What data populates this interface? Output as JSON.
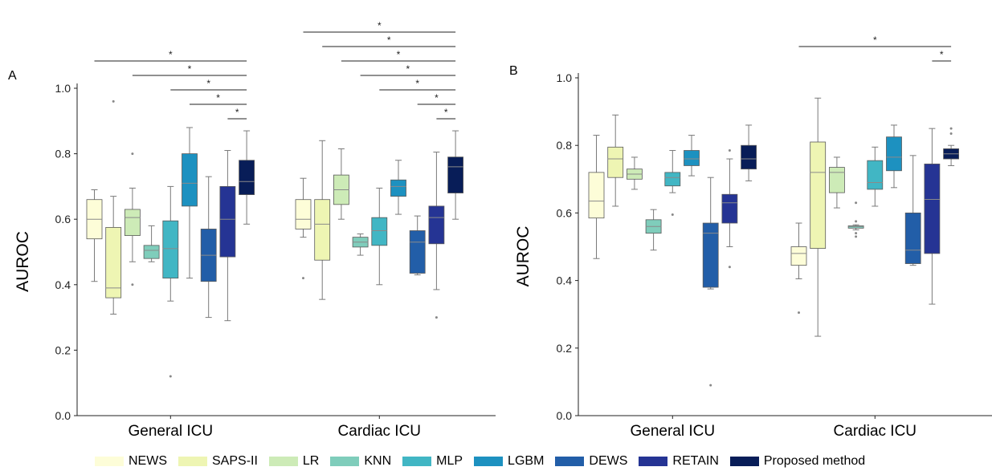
{
  "legend_title": "",
  "chart_data": [
    {
      "type": "box",
      "panel_label": "A",
      "ylabel": "AUROC",
      "ylim": [
        0.0,
        1.0
      ],
      "yticks": [
        "0.0",
        "0.2",
        "0.4",
        "0.6",
        "0.8",
        "1.0"
      ],
      "categories": [
        "General ICU",
        "Cardiac ICU"
      ],
      "series_names": [
        "NEWS",
        "SAPS-II",
        "LR",
        "KNN",
        "MLP",
        "LGBM",
        "DEWS",
        "RETAIN",
        "Proposed method"
      ],
      "groups": [
        {
          "category": "General ICU",
          "boxes": [
            {
              "series": "NEWS",
              "whisker_low": 0.41,
              "q1": 0.54,
              "median": 0.6,
              "q3": 0.66,
              "whisker_high": 0.69,
              "outliers": []
            },
            {
              "series": "SAPS-II",
              "whisker_low": 0.31,
              "q1": 0.36,
              "median": 0.39,
              "q3": 0.575,
              "whisker_high": 0.67,
              "outliers": [
                0.96
              ]
            },
            {
              "series": "LR",
              "whisker_low": 0.47,
              "q1": 0.55,
              "median": 0.605,
              "q3": 0.63,
              "whisker_high": 0.695,
              "outliers": [
                0.8,
                0.4
              ]
            },
            {
              "series": "KNN",
              "whisker_low": 0.47,
              "q1": 0.48,
              "median": 0.505,
              "q3": 0.52,
              "whisker_high": 0.58,
              "outliers": []
            },
            {
              "series": "MLP",
              "whisker_low": 0.35,
              "q1": 0.42,
              "median": 0.51,
              "q3": 0.595,
              "whisker_high": 0.7,
              "outliers": [
                0.12
              ]
            },
            {
              "series": "LGBM",
              "whisker_low": 0.42,
              "q1": 0.64,
              "median": 0.71,
              "q3": 0.8,
              "whisker_high": 0.88,
              "outliers": []
            },
            {
              "series": "DEWS",
              "whisker_low": 0.3,
              "q1": 0.41,
              "median": 0.49,
              "q3": 0.57,
              "whisker_high": 0.73,
              "outliers": []
            },
            {
              "series": "RETAIN",
              "whisker_low": 0.29,
              "q1": 0.485,
              "median": 0.6,
              "q3": 0.7,
              "whisker_high": 0.81,
              "outliers": []
            },
            {
              "series": "Proposed method",
              "whisker_low": 0.585,
              "q1": 0.675,
              "median": 0.715,
              "q3": 0.78,
              "whisker_high": 0.87,
              "outliers": []
            }
          ]
        },
        {
          "category": "Cardiac ICU",
          "boxes": [
            {
              "series": "NEWS",
              "whisker_low": 0.545,
              "q1": 0.57,
              "median": 0.6,
              "q3": 0.66,
              "whisker_high": 0.725,
              "outliers": [
                0.42
              ]
            },
            {
              "series": "SAPS-II",
              "whisker_low": 0.355,
              "q1": 0.475,
              "median": 0.585,
              "q3": 0.66,
              "whisker_high": 0.84,
              "outliers": []
            },
            {
              "series": "LR",
              "whisker_low": 0.6,
              "q1": 0.645,
              "median": 0.69,
              "q3": 0.735,
              "whisker_high": 0.815,
              "outliers": []
            },
            {
              "series": "KNN",
              "whisker_low": 0.49,
              "q1": 0.515,
              "median": 0.53,
              "q3": 0.545,
              "whisker_high": 0.555,
              "outliers": []
            },
            {
              "series": "MLP",
              "whisker_low": 0.4,
              "q1": 0.52,
              "median": 0.565,
              "q3": 0.605,
              "whisker_high": 0.695,
              "outliers": []
            },
            {
              "series": "LGBM",
              "whisker_low": 0.615,
              "q1": 0.67,
              "median": 0.7,
              "q3": 0.72,
              "whisker_high": 0.78,
              "outliers": []
            },
            {
              "series": "DEWS",
              "whisker_low": 0.43,
              "q1": 0.435,
              "median": 0.53,
              "q3": 0.565,
              "whisker_high": 0.61,
              "outliers": []
            },
            {
              "series": "RETAIN",
              "whisker_low": 0.385,
              "q1": 0.525,
              "median": 0.605,
              "q3": 0.64,
              "whisker_high": 0.805,
              "outliers": [
                0.3
              ]
            },
            {
              "series": "Proposed method",
              "whisker_low": 0.6,
              "q1": 0.68,
              "median": 0.76,
              "q3": 0.79,
              "whisker_high": 0.87,
              "outliers": []
            }
          ]
        }
      ],
      "significance_bars": [
        {
          "category": "General ICU",
          "from": "NEWS",
          "to": "Proposed method",
          "label": "*"
        },
        {
          "category": "General ICU",
          "from": "LR",
          "to": "Proposed method",
          "label": "*"
        },
        {
          "category": "General ICU",
          "from": "MLP",
          "to": "Proposed method",
          "label": "*"
        },
        {
          "category": "General ICU",
          "from": "LGBM",
          "to": "Proposed method",
          "label": "*"
        },
        {
          "category": "General ICU",
          "from": "RETAIN",
          "to": "Proposed method",
          "label": "*"
        },
        {
          "category": "Cardiac ICU",
          "from": "NEWS",
          "to": "Proposed method",
          "label": "*"
        },
        {
          "category": "Cardiac ICU",
          "from": "SAPS-II",
          "to": "Proposed method",
          "label": "*"
        },
        {
          "category": "Cardiac ICU",
          "from": "LR",
          "to": "Proposed method",
          "label": "*"
        },
        {
          "category": "Cardiac ICU",
          "from": "KNN",
          "to": "Proposed method",
          "label": "*"
        },
        {
          "category": "Cardiac ICU",
          "from": "MLP",
          "to": "Proposed method",
          "label": "*"
        },
        {
          "category": "Cardiac ICU",
          "from": "DEWS",
          "to": "Proposed method",
          "label": "*"
        },
        {
          "category": "Cardiac ICU",
          "from": "RETAIN",
          "to": "Proposed method",
          "label": "*"
        }
      ]
    },
    {
      "type": "box",
      "panel_label": "B",
      "ylabel": "AUROC",
      "ylim": [
        0.0,
        1.0
      ],
      "yticks": [
        "0.0",
        "0.2",
        "0.4",
        "0.6",
        "0.8",
        "1.0"
      ],
      "categories": [
        "General ICU",
        "Cardiac ICU"
      ],
      "series_names": [
        "NEWS",
        "SAPS-II",
        "LR",
        "KNN",
        "MLP",
        "LGBM",
        "DEWS",
        "RETAIN",
        "Proposed method"
      ],
      "groups": [
        {
          "category": "General ICU",
          "boxes": [
            {
              "series": "NEWS",
              "whisker_low": 0.465,
              "q1": 0.585,
              "median": 0.635,
              "q3": 0.72,
              "whisker_high": 0.83,
              "outliers": []
            },
            {
              "series": "SAPS-II",
              "whisker_low": 0.62,
              "q1": 0.705,
              "median": 0.76,
              "q3": 0.795,
              "whisker_high": 0.89,
              "outliers": []
            },
            {
              "series": "LR",
              "whisker_low": 0.67,
              "q1": 0.7,
              "median": 0.715,
              "q3": 0.73,
              "whisker_high": 0.765,
              "outliers": []
            },
            {
              "series": "KNN",
              "whisker_low": 0.49,
              "q1": 0.54,
              "median": 0.56,
              "q3": 0.58,
              "whisker_high": 0.61,
              "outliers": []
            },
            {
              "series": "MLP",
              "whisker_low": 0.66,
              "q1": 0.68,
              "median": 0.705,
              "q3": 0.72,
              "whisker_high": 0.785,
              "outliers": [
                0.595
              ]
            },
            {
              "series": "LGBM",
              "whisker_low": 0.71,
              "q1": 0.74,
              "median": 0.76,
              "q3": 0.785,
              "whisker_high": 0.83,
              "outliers": []
            },
            {
              "series": "DEWS",
              "whisker_low": 0.375,
              "q1": 0.38,
              "median": 0.54,
              "q3": 0.57,
              "whisker_high": 0.705,
              "outliers": [
                0.09
              ]
            },
            {
              "series": "RETAIN",
              "whisker_low": 0.5,
              "q1": 0.57,
              "median": 0.63,
              "q3": 0.655,
              "whisker_high": 0.76,
              "outliers": [
                0.785,
                0.44
              ]
            },
            {
              "series": "Proposed method",
              "whisker_low": 0.695,
              "q1": 0.73,
              "median": 0.76,
              "q3": 0.8,
              "whisker_high": 0.86,
              "outliers": []
            }
          ]
        },
        {
          "category": "Cardiac ICU",
          "boxes": [
            {
              "series": "NEWS",
              "whisker_low": 0.405,
              "q1": 0.445,
              "median": 0.48,
              "q3": 0.5,
              "whisker_high": 0.57,
              "outliers": [
                0.305
              ]
            },
            {
              "series": "SAPS-II",
              "whisker_low": 0.235,
              "q1": 0.495,
              "median": 0.72,
              "q3": 0.81,
              "whisker_high": 0.94,
              "outliers": []
            },
            {
              "series": "LR",
              "whisker_low": 0.615,
              "q1": 0.66,
              "median": 0.72,
              "q3": 0.735,
              "whisker_high": 0.765,
              "outliers": []
            },
            {
              "series": "KNN",
              "whisker_low": 0.55,
              "q1": 0.555,
              "median": 0.56,
              "q3": 0.562,
              "whisker_high": 0.565,
              "outliers": [
                0.63,
                0.575,
                0.54,
                0.53
              ]
            },
            {
              "series": "MLP",
              "whisker_low": 0.62,
              "q1": 0.67,
              "median": 0.69,
              "q3": 0.755,
              "whisker_high": 0.795,
              "outliers": []
            },
            {
              "series": "LGBM",
              "whisker_low": 0.675,
              "q1": 0.725,
              "median": 0.765,
              "q3": 0.825,
              "whisker_high": 0.86,
              "outliers": []
            },
            {
              "series": "DEWS",
              "whisker_low": 0.445,
              "q1": 0.45,
              "median": 0.49,
              "q3": 0.6,
              "whisker_high": 0.77,
              "outliers": []
            },
            {
              "series": "RETAIN",
              "whisker_low": 0.33,
              "q1": 0.48,
              "median": 0.64,
              "q3": 0.745,
              "whisker_high": 0.85,
              "outliers": []
            },
            {
              "series": "Proposed method",
              "whisker_low": 0.74,
              "q1": 0.76,
              "median": 0.775,
              "q3": 0.79,
              "whisker_high": 0.8,
              "outliers": [
                0.85,
                0.835
              ]
            }
          ]
        }
      ],
      "significance_bars": [
        {
          "category": "Cardiac ICU",
          "from": "NEWS",
          "to": "Proposed method",
          "label": "*"
        },
        {
          "category": "Cardiac ICU",
          "from": "RETAIN",
          "to": "Proposed method",
          "label": "*"
        }
      ]
    }
  ],
  "legend": [
    {
      "label": "NEWS",
      "color": "#fdfdd8"
    },
    {
      "label": "SAPS-II",
      "color": "#eef5b3"
    },
    {
      "label": "LR",
      "color": "#cdebb7"
    },
    {
      "label": "KNN",
      "color": "#7fcdbb"
    },
    {
      "label": "MLP",
      "color": "#41b6c4"
    },
    {
      "label": "LGBM",
      "color": "#1d91c0"
    },
    {
      "label": "DEWS",
      "color": "#225ea8"
    },
    {
      "label": "RETAIN",
      "color": "#253494"
    },
    {
      "label": "Proposed method",
      "color": "#081d58"
    }
  ]
}
